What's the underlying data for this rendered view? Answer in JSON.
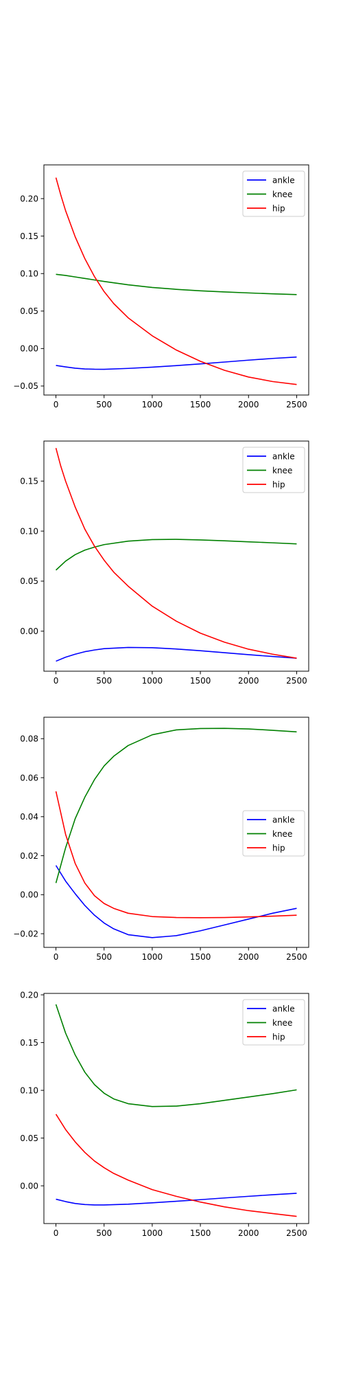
{
  "chart_data": [
    {
      "type": "line",
      "xlim": [
        -125,
        2625
      ],
      "ylim": [
        -0.062,
        0.245
      ],
      "xticks": [
        0,
        500,
        1000,
        1500,
        2000,
        2500
      ],
      "xtick_labels": [
        "0",
        "500",
        "1000",
        "1500",
        "2000",
        "2500"
      ],
      "yticks": [
        -0.05,
        0.0,
        0.05,
        0.1,
        0.15,
        0.2
      ],
      "ytick_labels": [
        "−0.05",
        "0.00",
        "0.05",
        "0.10",
        "0.15",
        "0.20"
      ],
      "grid": false,
      "legend_position": "upper right",
      "series": [
        {
          "name": "ankle",
          "color": "#0000ff",
          "x": [
            0,
            100,
            200,
            300,
            400,
            500,
            750,
            1000,
            1250,
            1500,
            1750,
            2000,
            2250,
            2500
          ],
          "y": [
            -0.0225,
            -0.0245,
            -0.0262,
            -0.0272,
            -0.0276,
            -0.0277,
            -0.0265,
            -0.0248,
            -0.0228,
            -0.0205,
            -0.018,
            -0.0155,
            -0.0132,
            -0.0113
          ]
        },
        {
          "name": "knee",
          "color": "#008000",
          "x": [
            0,
            100,
            200,
            300,
            400,
            500,
            750,
            1000,
            1250,
            1500,
            1750,
            2000,
            2250,
            2500
          ],
          "y": [
            0.099,
            0.0975,
            0.0955,
            0.0935,
            0.0915,
            0.0895,
            0.085,
            0.0815,
            0.079,
            0.077,
            0.0755,
            0.0742,
            0.073,
            0.072
          ]
        },
        {
          "name": "hip",
          "color": "#ff0000",
          "x": [
            0,
            50,
            100,
            200,
            300,
            400,
            500,
            600,
            750,
            1000,
            1250,
            1500,
            1750,
            2000,
            2250,
            2500
          ],
          "y": [
            0.228,
            0.205,
            0.184,
            0.149,
            0.12,
            0.096,
            0.076,
            0.06,
            0.041,
            0.017,
            -0.002,
            -0.017,
            -0.029,
            -0.038,
            -0.044,
            -0.048
          ]
        }
      ]
    },
    {
      "type": "line",
      "xlim": [
        -125,
        2625
      ],
      "ylim": [
        -0.04,
        0.19
      ],
      "xticks": [
        0,
        500,
        1000,
        1500,
        2000,
        2500
      ],
      "xtick_labels": [
        "0",
        "500",
        "1000",
        "1500",
        "2000",
        "2500"
      ],
      "yticks": [
        0.0,
        0.05,
        0.1,
        0.15
      ],
      "ytick_labels": [
        "0.00",
        "0.05",
        "0.10",
        "0.15"
      ],
      "grid": false,
      "legend_position": "upper right",
      "series": [
        {
          "name": "ankle",
          "color": "#0000ff",
          "x": [
            0,
            100,
            200,
            300,
            400,
            500,
            750,
            1000,
            1250,
            1500,
            1750,
            2000,
            2250,
            2500
          ],
          "y": [
            -0.03,
            -0.026,
            -0.023,
            -0.0205,
            -0.0188,
            -0.0175,
            -0.0163,
            -0.0165,
            -0.0178,
            -0.0195,
            -0.0215,
            -0.0235,
            -0.0253,
            -0.027
          ]
        },
        {
          "name": "knee",
          "color": "#008000",
          "x": [
            0,
            100,
            200,
            300,
            400,
            500,
            750,
            1000,
            1250,
            1500,
            1750,
            2000,
            2250,
            2500
          ],
          "y": [
            0.061,
            0.07,
            0.0765,
            0.081,
            0.084,
            0.0865,
            0.09,
            0.0915,
            0.0918,
            0.0912,
            0.0903,
            0.0893,
            0.0883,
            0.0872
          ]
        },
        {
          "name": "hip",
          "color": "#ff0000",
          "x": [
            0,
            50,
            100,
            200,
            300,
            400,
            500,
            600,
            750,
            1000,
            1250,
            1500,
            1750,
            2000,
            2250,
            2500
          ],
          "y": [
            0.183,
            0.165,
            0.15,
            0.124,
            0.102,
            0.085,
            0.071,
            0.059,
            0.045,
            0.025,
            0.01,
            -0.002,
            -0.011,
            -0.018,
            -0.023,
            -0.027
          ]
        }
      ]
    },
    {
      "type": "line",
      "xlim": [
        -125,
        2625
      ],
      "ylim": [
        -0.027,
        0.091
      ],
      "xticks": [
        0,
        500,
        1000,
        1500,
        2000,
        2500
      ],
      "xtick_labels": [
        "0",
        "500",
        "1000",
        "1500",
        "2000",
        "2500"
      ],
      "yticks": [
        -0.02,
        0.0,
        0.02,
        0.04,
        0.06,
        0.08
      ],
      "ytick_labels": [
        "−0.02",
        "0.00",
        "0.02",
        "0.04",
        "0.06",
        "0.08"
      ],
      "grid": false,
      "legend_position": "center right",
      "series": [
        {
          "name": "ankle",
          "color": "#0000ff",
          "x": [
            0,
            100,
            200,
            300,
            400,
            500,
            600,
            750,
            1000,
            1250,
            1500,
            1750,
            2000,
            2250,
            2500
          ],
          "y": [
            0.015,
            0.007,
            0.0005,
            -0.0055,
            -0.0105,
            -0.0145,
            -0.0175,
            -0.0205,
            -0.022,
            -0.021,
            -0.0185,
            -0.0155,
            -0.0125,
            -0.0095,
            -0.007
          ]
        },
        {
          "name": "knee",
          "color": "#008000",
          "x": [
            0,
            100,
            200,
            300,
            400,
            500,
            600,
            750,
            1000,
            1250,
            1500,
            1750,
            2000,
            2250,
            2500
          ],
          "y": [
            0.006,
            0.024,
            0.039,
            0.05,
            0.059,
            0.066,
            0.071,
            0.0765,
            0.082,
            0.0845,
            0.0852,
            0.0853,
            0.085,
            0.0843,
            0.0835
          ]
        },
        {
          "name": "hip",
          "color": "#ff0000",
          "x": [
            0,
            100,
            200,
            300,
            400,
            500,
            600,
            750,
            1000,
            1250,
            1500,
            1750,
            2000,
            2250,
            2500
          ],
          "y": [
            0.053,
            0.031,
            0.016,
            0.006,
            -0.0005,
            -0.0045,
            -0.007,
            -0.0095,
            -0.0112,
            -0.0117,
            -0.0118,
            -0.0117,
            -0.0114,
            -0.011,
            -0.0105
          ]
        }
      ]
    },
    {
      "type": "line",
      "xlim": [
        -125,
        2625
      ],
      "ylim": [
        -0.0395,
        0.2015
      ],
      "xticks": [
        0,
        500,
        1000,
        1500,
        2000,
        2500
      ],
      "xtick_labels": [
        "0",
        "500",
        "1000",
        "1500",
        "2000",
        "2500"
      ],
      "yticks": [
        0.0,
        0.05,
        0.1,
        0.15,
        0.2
      ],
      "ytick_labels": [
        "0.00",
        "0.05",
        "0.10",
        "0.15",
        "0.20"
      ],
      "grid": false,
      "legend_position": "upper right",
      "series": [
        {
          "name": "ankle",
          "color": "#0000ff",
          "x": [
            0,
            100,
            200,
            300,
            400,
            500,
            750,
            1000,
            1250,
            1500,
            1750,
            2000,
            2250,
            2500
          ],
          "y": [
            -0.014,
            -0.0165,
            -0.0185,
            -0.0196,
            -0.02,
            -0.02,
            -0.0192,
            -0.0178,
            -0.0162,
            -0.0145,
            -0.0127,
            -0.011,
            -0.0093,
            -0.0078
          ]
        },
        {
          "name": "knee",
          "color": "#008000",
          "x": [
            0,
            100,
            200,
            300,
            400,
            500,
            600,
            750,
            1000,
            1250,
            1500,
            1750,
            2000,
            2250,
            2500
          ],
          "y": [
            0.19,
            0.16,
            0.137,
            0.119,
            0.106,
            0.097,
            0.091,
            0.086,
            0.083,
            0.0835,
            0.086,
            0.0895,
            0.093,
            0.0965,
            0.1005
          ]
        },
        {
          "name": "hip",
          "color": "#ff0000",
          "x": [
            0,
            100,
            200,
            300,
            400,
            500,
            600,
            750,
            1000,
            1250,
            1500,
            1750,
            2000,
            2250,
            2500
          ],
          "y": [
            0.075,
            0.059,
            0.046,
            0.035,
            0.026,
            0.019,
            0.013,
            0.006,
            -0.004,
            -0.011,
            -0.017,
            -0.022,
            -0.026,
            -0.029,
            -0.032
          ]
        }
      ]
    }
  ]
}
